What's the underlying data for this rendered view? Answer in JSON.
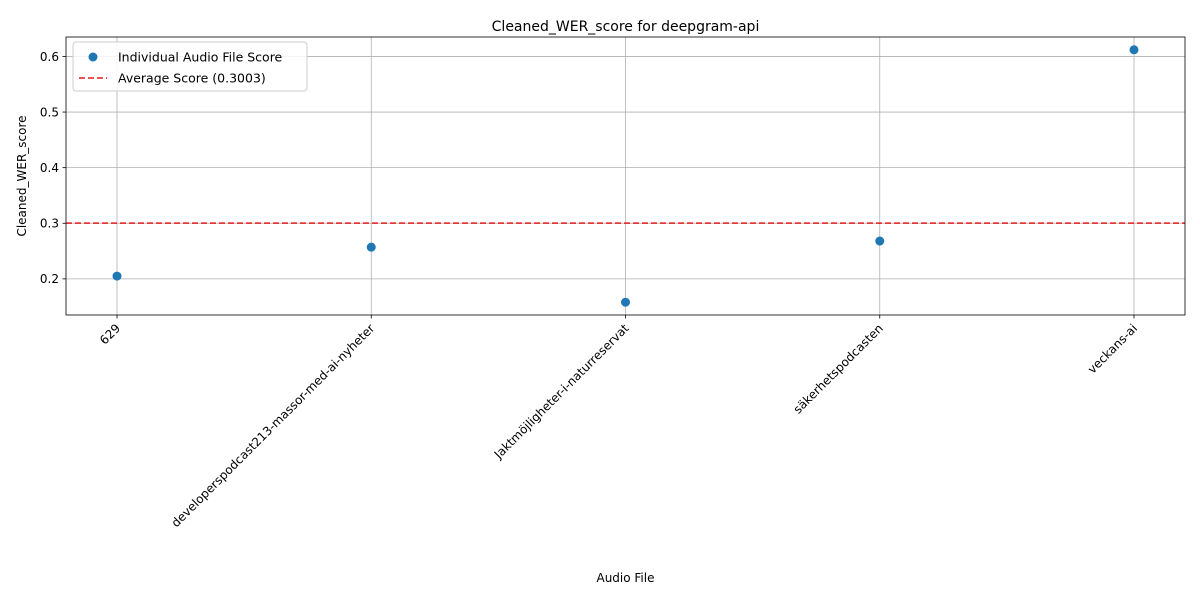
{
  "chart_data": {
    "type": "scatter",
    "title": "Cleaned_WER_score for deepgram-api",
    "xlabel": "Audio File",
    "ylabel": "Cleaned_WER_score",
    "categories": [
      "629",
      "developerspodcast213-massor-med-ai-nyheter",
      "Jaktmöjligheter-i-naturreservat",
      "säkerhetspodcasten",
      "veckans-ai"
    ],
    "series": [
      {
        "name": "Individual Audio File Score",
        "values": [
          0.205,
          0.257,
          0.158,
          0.268,
          0.612
        ],
        "color": "#1f77b4"
      }
    ],
    "average": {
      "label": "Average Score (0.3003)",
      "value": 0.3003,
      "color": "#e31a1c",
      "style": "dashed"
    },
    "ylim": [
      0.135,
      0.635
    ],
    "yticks": [
      "0.2",
      "0.3",
      "0.4",
      "0.5",
      "0.6"
    ],
    "grid": true,
    "legend_position": "top-left"
  }
}
